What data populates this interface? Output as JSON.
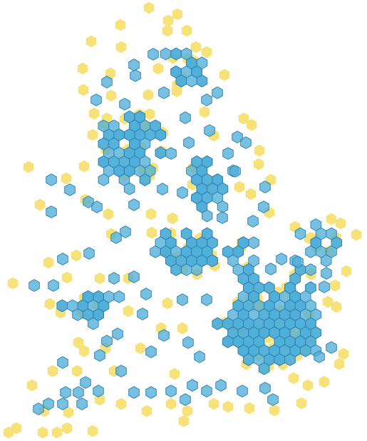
{
  "map": {
    "layers": [
      {
        "name": "yellow-hex-layer",
        "color": "#f7e27a"
      },
      {
        "name": "blue-hex-layer",
        "color": "#4fb0d8",
        "stroke": "#2f7fb0"
      }
    ]
  }
}
